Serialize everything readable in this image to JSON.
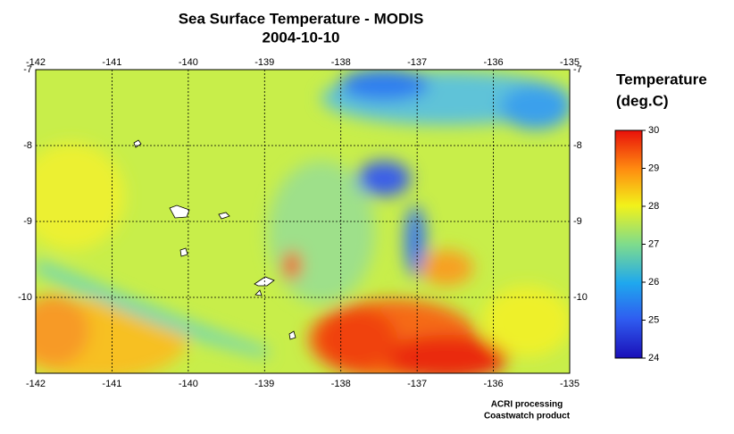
{
  "title": "Sea Surface Temperature - MODIS",
  "subtitle": "2004-10-10",
  "map": {
    "xlim": [
      -142,
      -135
    ],
    "ylim": [
      -11,
      -7
    ],
    "xticks": [
      -142,
      -141,
      -140,
      -139,
      -138,
      -137,
      -136,
      -135
    ],
    "yticks": [
      -10,
      -9,
      -8,
      -7
    ],
    "grid": true
  },
  "colorbar": {
    "title": [
      "Temperature",
      "(deg.C)"
    ],
    "lim": [
      24,
      30
    ],
    "ticks": [
      24,
      25,
      26,
      27,
      28,
      29,
      30
    ]
  },
  "credits": [
    "ACRI processing",
    "Coastwatch product"
  ]
}
